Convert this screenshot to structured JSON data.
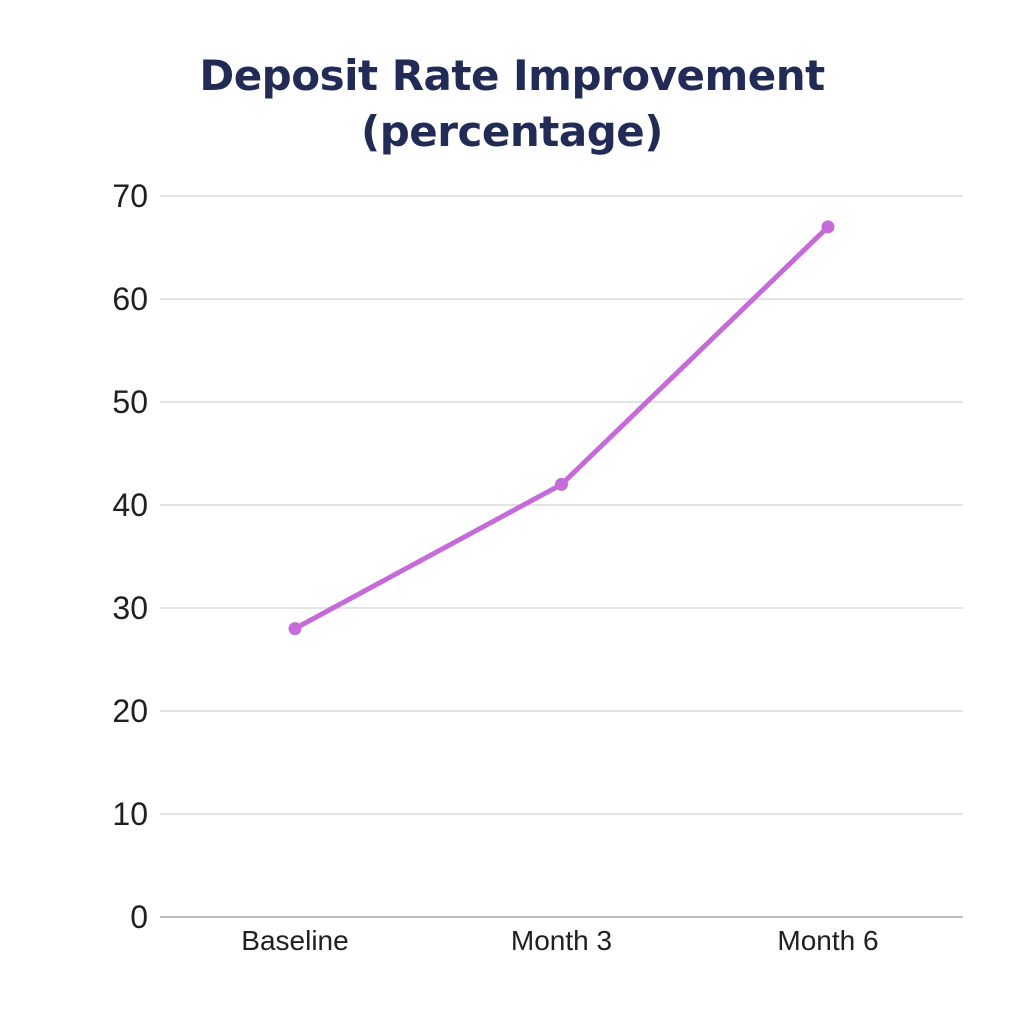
{
  "title": {
    "line1": "Deposit Rate Improvement",
    "line2": "(percentage)",
    "color": "#212b56"
  },
  "chart_data": {
    "type": "line",
    "title": "Deposit Rate Improvement (percentage)",
    "categories": [
      "Baseline",
      "Month 3",
      "Month 6"
    ],
    "series": [
      {
        "name": "Deposit Rate Improvement",
        "values": [
          28,
          42,
          67
        ]
      }
    ],
    "xlabel": "",
    "ylabel": "",
    "ylim": [
      0,
      70
    ],
    "yticks": [
      0,
      10,
      20,
      30,
      40,
      50,
      60,
      70
    ],
    "grid": true,
    "legend_position": "none",
    "line_color": "#c56ad9",
    "marker": "circle",
    "gridline_color": "#dadada",
    "axis_line_color": "#bfbfbf",
    "tick_label_color": "#202020",
    "background_color": "#ffffff"
  }
}
